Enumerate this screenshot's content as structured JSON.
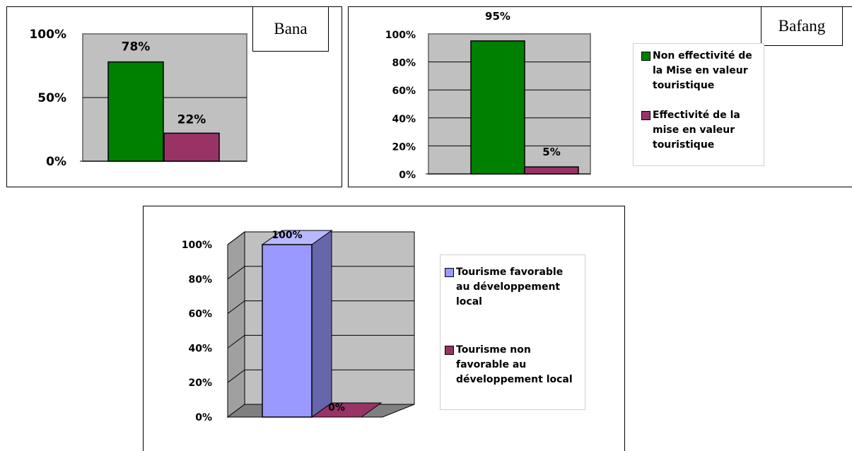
{
  "colors": {
    "green": "#008000",
    "maroon": "#993366",
    "lavender": "#9999ff",
    "lavender_side": "#6666aa",
    "plot_bg": "#c0c0c0"
  },
  "chart_data": [
    {
      "type": "bar",
      "place": "Bana",
      "categories": [
        "Non effectivité de la Mise en valeur touristique",
        "Effectivité de la mise en valeur touristique"
      ],
      "values": [
        78,
        22
      ],
      "data_labels": [
        "78%",
        "22%"
      ],
      "yticks": [
        "0%",
        "50%",
        "100%"
      ],
      "ylim": [
        0,
        100
      ],
      "grid": true,
      "legend": "none"
    },
    {
      "type": "bar",
      "place": "Bafang",
      "categories": [
        "Non effectivité de la Mise en valeur touristique",
        "Effectivité de la mise en valeur touristique"
      ],
      "values": [
        95,
        5
      ],
      "data_labels": [
        "95%",
        "5%"
      ],
      "yticks": [
        "0%",
        "20%",
        "40%",
        "60%",
        "80%",
        "100%"
      ],
      "ylim": [
        0,
        100
      ],
      "grid": true,
      "legend": "right",
      "legend_entries": [
        "Non effectivité de\nla Mise en valeur\ntouristique",
        "Effectivité de la\nmise en valeur\ntouristique"
      ]
    },
    {
      "type": "bar",
      "style": "3d",
      "categories": [
        "Tourisme favorable au développement local",
        "Tourisme non favorable au développement local"
      ],
      "values": [
        100,
        0
      ],
      "data_labels": [
        "100%",
        "0%"
      ],
      "yticks": [
        "0%",
        "20%",
        "40%",
        "60%",
        "80%",
        "100%"
      ],
      "ylim": [
        0,
        100
      ],
      "grid": true,
      "legend": "right",
      "legend_entries": [
        "Tourisme favorable\nau développement\nlocal",
        "Tourisme non\nfavorable au\ndéveloppement local"
      ]
    }
  ]
}
